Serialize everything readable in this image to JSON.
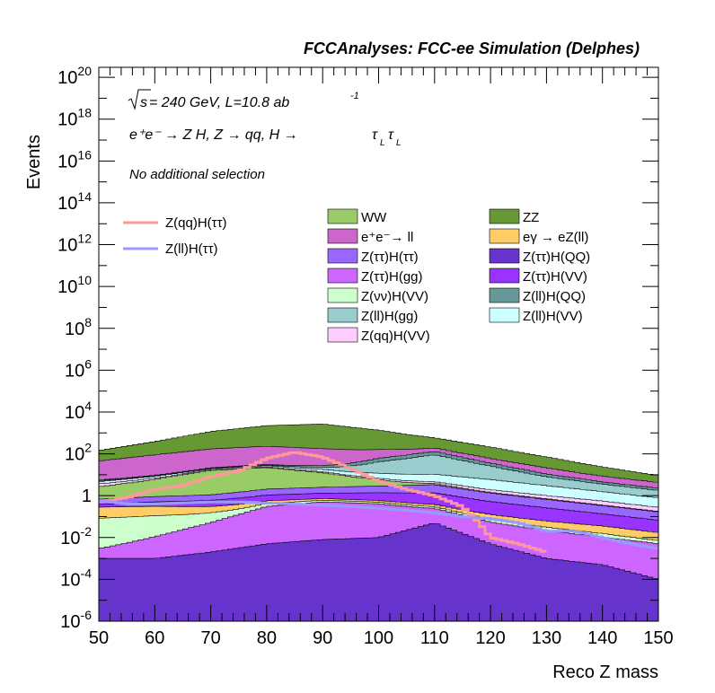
{
  "header": {
    "title": "FCCAnalyses: FCC-ee Simulation (Delphes)"
  },
  "annotations": {
    "sqrt_s": "s",
    "energy_lumi": " = 240 GeV, L=10.8 ab",
    "lumi_exp": "-1",
    "process_prefix": "e⁺e⁻ → Z H, Z → qq, H → ",
    "tau": "τ",
    "sub_l": "L",
    "selection": "No additional selection"
  },
  "chart_data": {
    "type": "area",
    "xlabel": "Reco Z mass",
    "ylabel": "Events",
    "xlim": [
      50,
      150
    ],
    "ylim": [
      1e-06,
      3e+20
    ],
    "log_y": true,
    "x_ticks": [
      "50",
      "60",
      "70",
      "80",
      "90",
      "100",
      "110",
      "120",
      "130",
      "140",
      "150"
    ],
    "y_ticks": [
      {
        "value": 1e-06,
        "base": "10",
        "exp": "-6"
      },
      {
        "value": 0.0001,
        "base": "10",
        "exp": "-4"
      },
      {
        "value": 0.01,
        "base": "10",
        "exp": "-2"
      },
      {
        "value": 1,
        "base": "1",
        "exp": ""
      },
      {
        "value": 100.0,
        "base": "10",
        "exp": "2"
      },
      {
        "value": 10000.0,
        "base": "10",
        "exp": "4"
      },
      {
        "value": 1000000.0,
        "base": "10",
        "exp": "6"
      },
      {
        "value": 100000000.0,
        "base": "10",
        "exp": "8"
      },
      {
        "value": 10000000000.0,
        "base": "10",
        "exp": "10"
      },
      {
        "value": 1000000000000.0,
        "base": "10",
        "exp": "12"
      },
      {
        "value": 100000000000000.0,
        "base": "10",
        "exp": "14"
      },
      {
        "value": 1e+16,
        "base": "10",
        "exp": "16"
      },
      {
        "value": 1e+18,
        "base": "10",
        "exp": "18"
      },
      {
        "value": 1e+20,
        "base": "10",
        "exp": "20"
      }
    ],
    "legend_signal": [
      {
        "name": "Z(qq)H(ττ)",
        "color": "#ff9999"
      },
      {
        "name": "Z(ll)H(ττ)",
        "color": "#9999ff"
      }
    ],
    "legend_bkg": [
      {
        "name": "WW",
        "color": "#99cc66"
      },
      {
        "name": "ZZ",
        "color": "#669933"
      },
      {
        "name": "e⁺e⁻→ ll",
        "color": "#cc66cc"
      },
      {
        "name": "eγ → eZ(ll)",
        "color": "#ffcc66"
      },
      {
        "name": "Z(ττ)H(ττ)",
        "color": "#9966ff"
      },
      {
        "name": "Z(ττ)H(QQ)",
        "color": "#6633cc"
      },
      {
        "name": "Z(ττ)H(gg)",
        "color": "#cc66ff"
      },
      {
        "name": "Z(ττ)H(VV)",
        "color": "#9933ff"
      },
      {
        "name": "Z(νν)H(VV)",
        "color": "#ccffcc"
      },
      {
        "name": "Z(ll)H(QQ)",
        "color": "#669999"
      },
      {
        "name": "Z(ll)H(gg)",
        "color": "#99cccc"
      },
      {
        "name": "Z(ll)H(VV)",
        "color": "#ccffff"
      },
      {
        "name": "Z(qq)H(VV)",
        "color": "#ffccff"
      }
    ],
    "stack_bottom_to_top": [
      {
        "name": "Z(ττ)H(QQ)",
        "color": "#6633cc",
        "points": [
          [
            50,
            0.001
          ],
          [
            60,
            0.001
          ],
          [
            70,
            0.002
          ],
          [
            80,
            0.005
          ],
          [
            90,
            0.008
          ],
          [
            100,
            0.01
          ],
          [
            110,
            0.05
          ],
          [
            120,
            0.005
          ],
          [
            130,
            0.001
          ],
          [
            140,
            0.0005
          ],
          [
            150,
            0.0001
          ]
        ]
      },
      {
        "name": "Z(ττ)H(gg)",
        "color": "#cc66ff",
        "points": [
          [
            50,
            0.002
          ],
          [
            60,
            0.01
          ],
          [
            70,
            0.05
          ],
          [
            80,
            0.3
          ],
          [
            90,
            0.5
          ],
          [
            100,
            0.4
          ],
          [
            110,
            0.2
          ],
          [
            120,
            0.05
          ],
          [
            130,
            0.02
          ],
          [
            140,
            0.01
          ],
          [
            150,
            0.005
          ]
        ]
      },
      {
        "name": "Z(νν)H(VV)",
        "color": "#ccffcc",
        "points": [
          [
            50,
            0.08
          ],
          [
            60,
            0.1
          ],
          [
            70,
            0.1
          ],
          [
            80,
            0.12
          ],
          [
            90,
            0.1
          ],
          [
            100,
            0.08
          ],
          [
            110,
            0.05
          ],
          [
            120,
            0.02
          ],
          [
            130,
            0.01
          ],
          [
            140,
            0.005
          ],
          [
            150,
            0.002
          ]
        ]
      },
      {
        "name": "eγ → eZ(ll)",
        "color": "#ffcc66",
        "points": [
          [
            50,
            0.2
          ],
          [
            60,
            0.2
          ],
          [
            70,
            0.15
          ],
          [
            80,
            0.15
          ],
          [
            90,
            0.12
          ],
          [
            100,
            0.1
          ],
          [
            110,
            0.08
          ],
          [
            120,
            0.05
          ],
          [
            130,
            0.03
          ],
          [
            140,
            0.02
          ],
          [
            150,
            0.01
          ]
        ]
      },
      {
        "name": "Z(ττ)H(VV)",
        "color": "#9933ff",
        "points": [
          [
            50,
            0.1
          ],
          [
            60,
            0.2
          ],
          [
            70,
            0.3
          ],
          [
            80,
            0.5
          ],
          [
            90,
            0.6
          ],
          [
            100,
            0.8
          ],
          [
            110,
            1.0
          ],
          [
            120,
            0.4
          ],
          [
            130,
            0.2
          ],
          [
            140,
            0.1
          ],
          [
            150,
            0.05
          ]
        ]
      },
      {
        "name": "Z(ττ)H(ττ)",
        "color": "#9966ff",
        "points": [
          [
            50,
            0.3
          ],
          [
            60,
            0.4
          ],
          [
            70,
            0.5
          ],
          [
            80,
            1.0
          ],
          [
            90,
            1.2
          ],
          [
            100,
            1.5
          ],
          [
            110,
            2.0
          ],
          [
            120,
            0.8
          ],
          [
            130,
            0.4
          ],
          [
            140,
            0.2
          ],
          [
            150,
            0.1
          ]
        ]
      },
      {
        "name": "WW",
        "color": "#99cc66",
        "points": [
          [
            50,
            2
          ],
          [
            60,
            5
          ],
          [
            70,
            15
          ],
          [
            80,
            20
          ],
          [
            90,
            10
          ],
          [
            100,
            3
          ],
          [
            110,
            0.5
          ],
          [
            120,
            0.1
          ],
          [
            130,
            0.05
          ],
          [
            140,
            0.02
          ],
          [
            150,
            0.01
          ]
        ]
      },
      {
        "name": "Z(qq)H(VV)",
        "color": "#ffccff",
        "points": [
          [
            50,
            1
          ],
          [
            60,
            1
          ],
          [
            70,
            1.5
          ],
          [
            80,
            2
          ],
          [
            90,
            1.5
          ],
          [
            100,
            1
          ],
          [
            110,
            0.8
          ],
          [
            120,
            0.5
          ],
          [
            130,
            0.3
          ],
          [
            140,
            0.2
          ],
          [
            150,
            0.1
          ]
        ]
      },
      {
        "name": "Z(ll)H(VV)",
        "color": "#ccffff",
        "points": [
          [
            50,
            1
          ],
          [
            60,
            1.5
          ],
          [
            70,
            2
          ],
          [
            80,
            3
          ],
          [
            90,
            4
          ],
          [
            100,
            5
          ],
          [
            110,
            6
          ],
          [
            120,
            4
          ],
          [
            130,
            2
          ],
          [
            140,
            1
          ],
          [
            150,
            0.5
          ]
        ]
      },
      {
        "name": "Z(ll)H(gg)",
        "color": "#99cccc",
        "points": [
          [
            50,
            0.5
          ],
          [
            60,
            0.5
          ],
          [
            70,
            1
          ],
          [
            80,
            2
          ],
          [
            90,
            5
          ],
          [
            100,
            30
          ],
          [
            110,
            80
          ],
          [
            120,
            20
          ],
          [
            130,
            5
          ],
          [
            140,
            2
          ],
          [
            150,
            1
          ]
        ]
      },
      {
        "name": "Z(ll)H(QQ)",
        "color": "#669999",
        "points": [
          [
            50,
            0.5
          ],
          [
            60,
            0.5
          ],
          [
            70,
            1
          ],
          [
            80,
            2
          ],
          [
            90,
            5
          ],
          [
            100,
            20
          ],
          [
            110,
            40
          ],
          [
            120,
            10
          ],
          [
            130,
            3
          ],
          [
            140,
            1
          ],
          [
            150,
            0.5
          ]
        ]
      },
      {
        "name": "e⁺e⁻→ ll",
        "color": "#cc66cc",
        "points": [
          [
            50,
            40
          ],
          [
            60,
            80
          ],
          [
            70,
            150
          ],
          [
            80,
            200
          ],
          [
            90,
            150
          ],
          [
            100,
            100
          ],
          [
            110,
            60
          ],
          [
            120,
            25
          ],
          [
            130,
            10
          ],
          [
            140,
            4
          ],
          [
            150,
            2
          ]
        ]
      },
      {
        "name": "ZZ",
        "color": "#669933",
        "points": [
          [
            50,
            100
          ],
          [
            60,
            300
          ],
          [
            70,
            1000
          ],
          [
            80,
            2000
          ],
          [
            90,
            2500
          ],
          [
            100,
            1200
          ],
          [
            110,
            400
          ],
          [
            120,
            150
          ],
          [
            130,
            50
          ],
          [
            140,
            15
          ],
          [
            150,
            5
          ]
        ]
      }
    ],
    "signal_lines": [
      {
        "name": "Z(qq)H(ττ)",
        "color": "#ff9999",
        "points": [
          [
            50,
            0.5
          ],
          [
            55,
            0.8
          ],
          [
            60,
            2
          ],
          [
            65,
            3
          ],
          [
            70,
            8
          ],
          [
            75,
            15
          ],
          [
            80,
            60
          ],
          [
            85,
            120
          ],
          [
            90,
            70
          ],
          [
            95,
            20
          ],
          [
            100,
            5
          ],
          [
            105,
            2
          ],
          [
            110,
            1
          ],
          [
            115,
            0.3
          ],
          [
            118,
            0.05
          ],
          [
            120,
            0.01
          ],
          [
            125,
            0.005
          ],
          [
            130,
            0.002
          ]
        ]
      },
      {
        "name": "Z(ll)H(ττ)",
        "color": "#9999ff",
        "points": [
          [
            50,
            0.6
          ],
          [
            55,
            0.4
          ],
          [
            60,
            0.4
          ],
          [
            65,
            0.45
          ],
          [
            70,
            0.5
          ],
          [
            75,
            0.5
          ],
          [
            80,
            0.45
          ],
          [
            85,
            0.4
          ],
          [
            90,
            0.35
          ],
          [
            95,
            0.3
          ],
          [
            100,
            0.25
          ],
          [
            105,
            0.2
          ],
          [
            110,
            0.15
          ],
          [
            115,
            0.1
          ],
          [
            120,
            0.08
          ],
          [
            125,
            0.05
          ],
          [
            130,
            0.02
          ],
          [
            135,
            0.02
          ],
          [
            140,
            0.01
          ],
          [
            145,
            0.005
          ],
          [
            150,
            0.003
          ]
        ]
      }
    ]
  }
}
